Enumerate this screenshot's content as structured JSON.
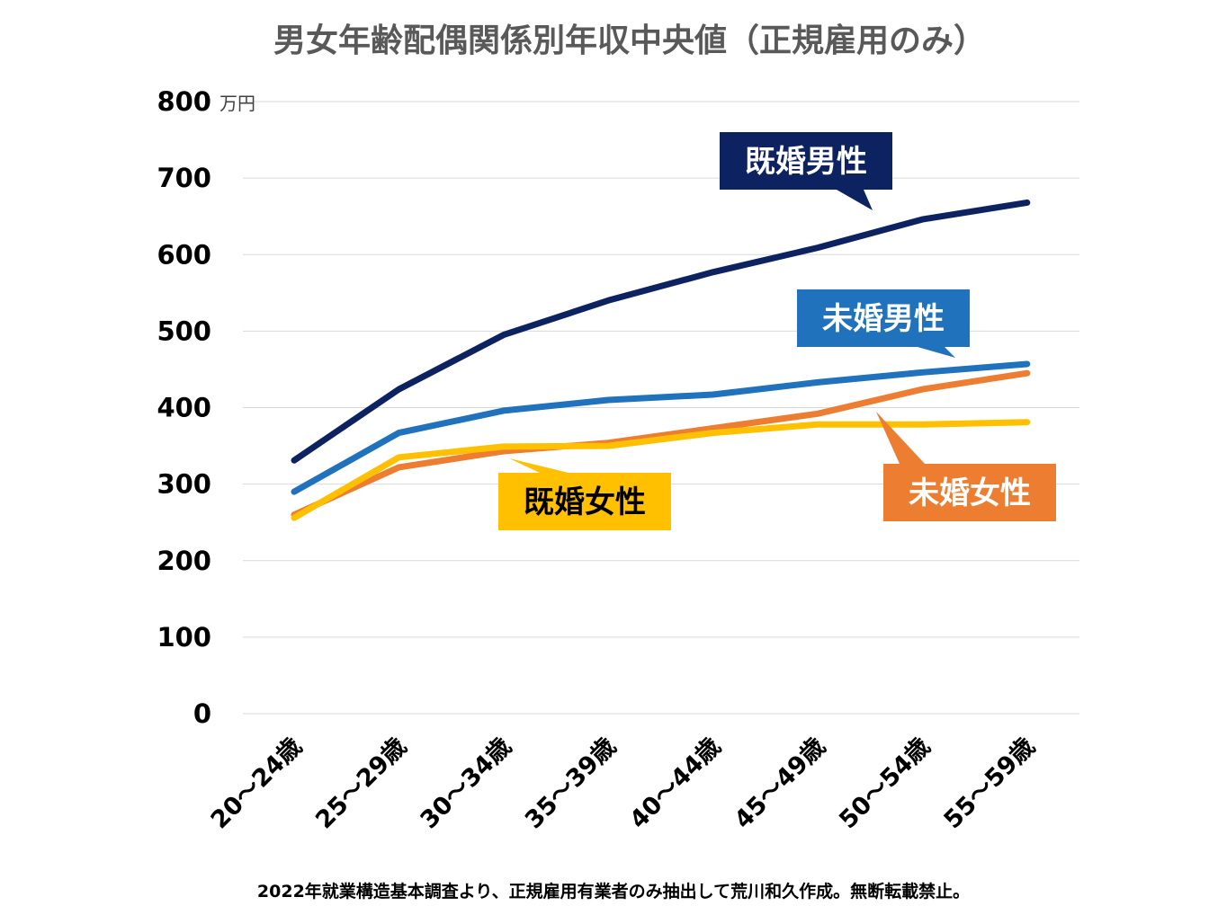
{
  "chart_data": {
    "type": "line",
    "title": "男女年齢配偶関係別年収中央値（正規雇用のみ）",
    "unit_label": "万円",
    "footer": "2022年就業構造基本調査より、正規雇用有業者のみ抽出して荒川和久作成。無断転載禁止。",
    "categories": [
      "20～24歳",
      "25～29歳",
      "30～34歳",
      "35～39歳",
      "40～44歳",
      "45～49歳",
      "50～54歳",
      "55～59歳"
    ],
    "ylim": [
      0,
      800
    ],
    "yticks": [
      "0",
      "100",
      "200",
      "300",
      "400",
      "500",
      "600",
      "700",
      "800"
    ],
    "grid": true,
    "legend": "callouts",
    "series": [
      {
        "name": "既婚男性",
        "color": "#0d2361",
        "text_color": "#ffffff",
        "values": [
          331,
          424,
          495,
          540,
          577,
          609,
          646,
          668
        ]
      },
      {
        "name": "未婚男性",
        "color": "#1f72bb",
        "text_color": "#ffffff",
        "values": [
          290,
          367,
          396,
          410,
          417,
          433,
          446,
          457
        ]
      },
      {
        "name": "未婚女性",
        "color": "#ed7d31",
        "text_color": "#ffffff",
        "values": [
          260,
          322,
          343,
          354,
          373,
          392,
          424,
          445
        ]
      },
      {
        "name": "既婚女性",
        "color": "#ffc000",
        "text_color": "#000000",
        "values": [
          256,
          335,
          349,
          350,
          367,
          378,
          378,
          381
        ]
      }
    ]
  }
}
